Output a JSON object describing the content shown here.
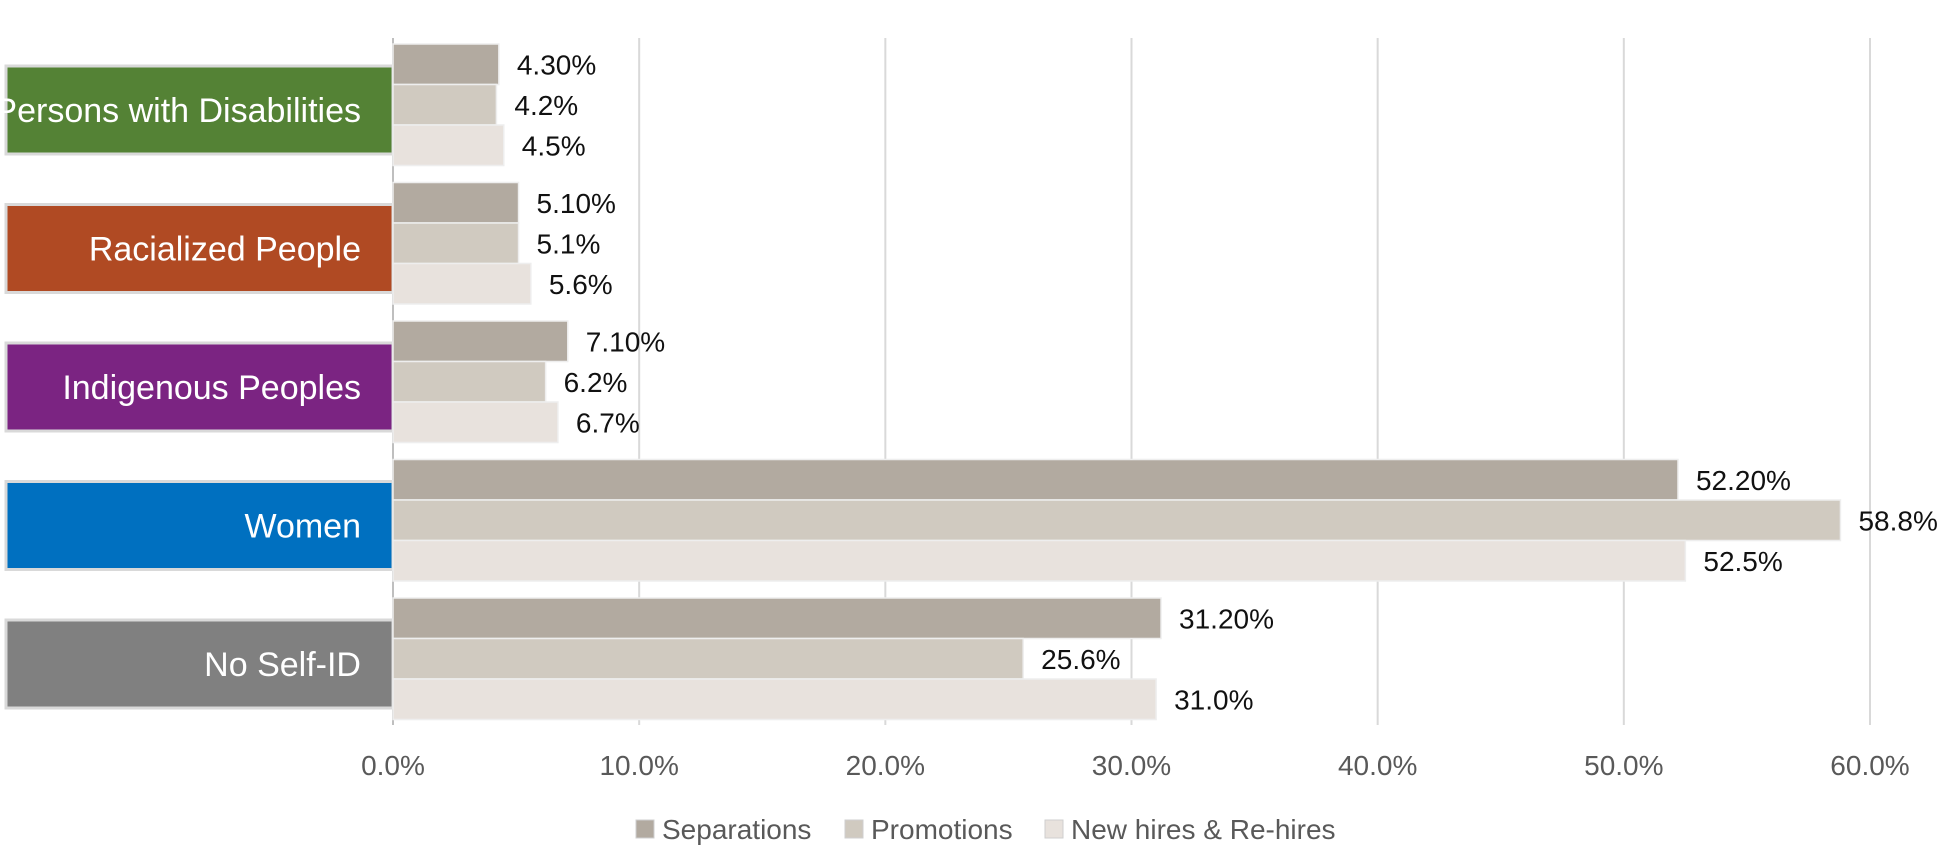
{
  "chart_data": {
    "type": "bar",
    "orientation": "horizontal",
    "categories": [
      "Persons with Disabilities",
      "Racialized People",
      "Indigenous Peoples",
      "Women",
      "No Self-ID"
    ],
    "category_colors": [
      "#548235",
      "#b04a23",
      "#7b2482",
      "#0070c0",
      "#808080"
    ],
    "series": [
      {
        "name": "Separations",
        "color": "#b2aaa0",
        "values": [
          4.3,
          5.1,
          7.1,
          52.2,
          31.2
        ],
        "labels": [
          "4.30%",
          "5.10%",
          "7.10%",
          "52.20%",
          "31.20%"
        ]
      },
      {
        "name": "Promotions",
        "color": "#d0cac0",
        "values": [
          4.2,
          5.1,
          6.2,
          58.8,
          25.6
        ],
        "labels": [
          "4.2%",
          "5.1%",
          "6.2%",
          "58.8%",
          "25.6%"
        ]
      },
      {
        "name": "New hires & Re-hires",
        "color": "#e8e2dd",
        "values": [
          4.5,
          5.6,
          6.7,
          52.5,
          31.0
        ],
        "labels": [
          "4.5%",
          "5.6%",
          "6.7%",
          "52.5%",
          "31.0%"
        ]
      }
    ],
    "xlim": [
      0,
      60
    ],
    "xticks": [
      0,
      10,
      20,
      30,
      40,
      50,
      60
    ],
    "xtick_labels": [
      "0.0%",
      "10.0%",
      "20.0%",
      "30.0%",
      "40.0%",
      "50.0%",
      "60.0%"
    ],
    "grid": true,
    "legend_position": "bottom"
  }
}
